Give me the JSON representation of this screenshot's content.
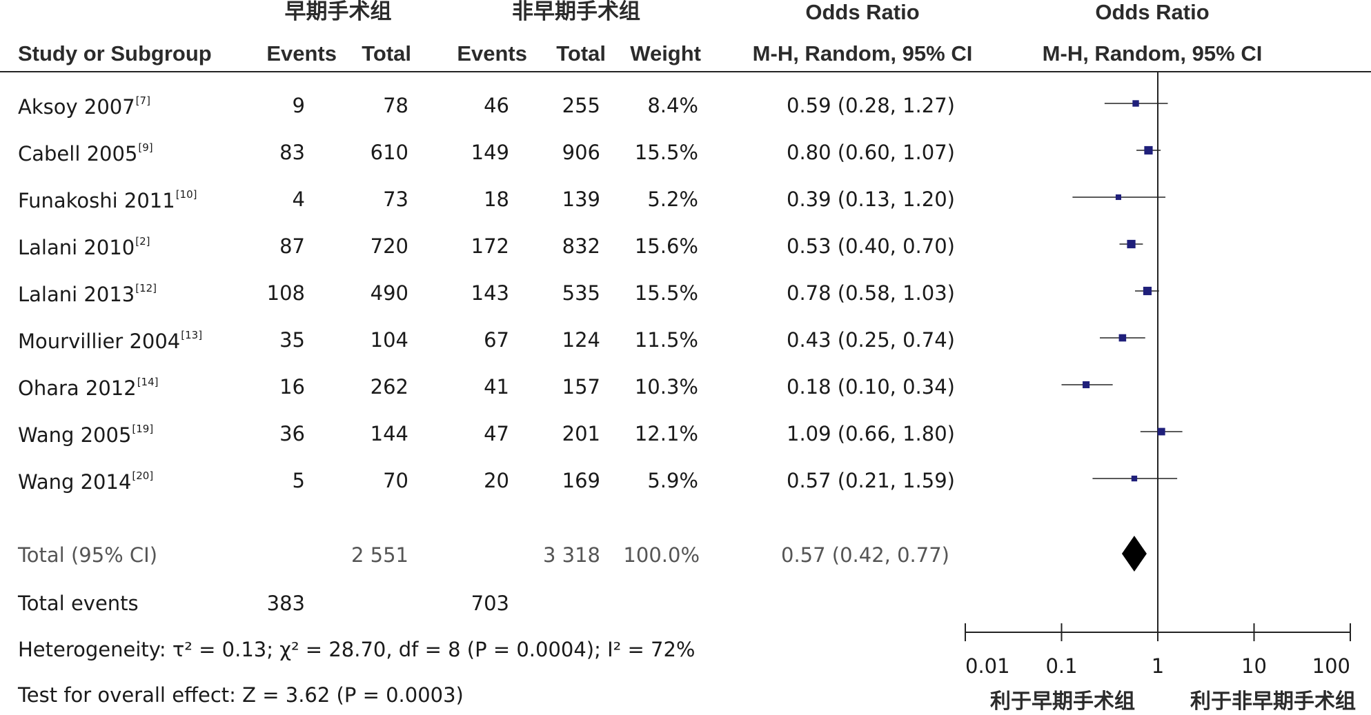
{
  "chart_data": {
    "type": "forest",
    "group_headers": {
      "early": "早期手术组",
      "nonearly": "非早期手术组"
    },
    "column_headers": {
      "study": "Study or Subgroup",
      "events1": "Events",
      "total1": "Total",
      "events2": "Events",
      "total2": "Total",
      "weight": "Weight",
      "or_title": "Odds Ratio",
      "or_method": "M-H, Random, 95% CI",
      "plot_title": "Odds Ratio",
      "plot_method": "M-H, Random, 95% CI"
    },
    "studies": [
      {
        "name": "Aksoy 2007",
        "ref": "[7]",
        "events1": "9",
        "total1": "78",
        "events2": "46",
        "total2": "255",
        "weight": "8.4%",
        "or_text": "0.59 (0.28, 1.27)",
        "or": 0.59,
        "lo": 0.28,
        "hi": 1.27,
        "w": 8.4
      },
      {
        "name": "Cabell 2005",
        "ref": "[9]",
        "events1": "83",
        "total1": "610",
        "events2": "149",
        "total2": "906",
        "weight": "15.5%",
        "or_text": "0.80 (0.60, 1.07)",
        "or": 0.8,
        "lo": 0.6,
        "hi": 1.07,
        "w": 15.5
      },
      {
        "name": "Funakoshi 2011",
        "ref": "[10]",
        "events1": "4",
        "total1": "73",
        "events2": "18",
        "total2": "139",
        "weight": "5.2%",
        "or_text": "0.39 (0.13, 1.20)",
        "or": 0.39,
        "lo": 0.13,
        "hi": 1.2,
        "w": 5.2
      },
      {
        "name": "Lalani 2010",
        "ref": "[2]",
        "events1": "87",
        "total1": "720",
        "events2": "172",
        "total2": "832",
        "weight": "15.6%",
        "or_text": "0.53 (0.40, 0.70)",
        "or": 0.53,
        "lo": 0.4,
        "hi": 0.7,
        "w": 15.6
      },
      {
        "name": "Lalani 2013",
        "ref": "[12]",
        "events1": "108",
        "total1": "490",
        "events2": "143",
        "total2": "535",
        "weight": "15.5%",
        "or_text": "0.78 (0.58, 1.03)",
        "or": 0.78,
        "lo": 0.58,
        "hi": 1.03,
        "w": 15.5
      },
      {
        "name": "Mourvillier 2004",
        "ref": "[13]",
        "events1": "35",
        "total1": "104",
        "events2": "67",
        "total2": "124",
        "weight": "11.5%",
        "or_text": "0.43 (0.25, 0.74)",
        "or": 0.43,
        "lo": 0.25,
        "hi": 0.74,
        "w": 11.5
      },
      {
        "name": "Ohara 2012",
        "ref": "[14]",
        "events1": "16",
        "total1": "262",
        "events2": "41",
        "total2": "157",
        "weight": "10.3%",
        "or_text": "0.18 (0.10, 0.34)",
        "or": 0.18,
        "lo": 0.1,
        "hi": 0.34,
        "w": 10.3
      },
      {
        "name": "Wang 2005",
        "ref": "[19]",
        "events1": "36",
        "total1": "144",
        "events2": "47",
        "total2": "201",
        "weight": "12.1%",
        "or_text": "1.09 (0.66, 1.80)",
        "or": 1.09,
        "lo": 0.66,
        "hi": 1.8,
        "w": 12.1
      },
      {
        "name": "Wang 2014",
        "ref": "[20]",
        "events1": "5",
        "total1": "70",
        "events2": "20",
        "total2": "169",
        "weight": "5.9%",
        "or_text": "0.57 (0.21, 1.59)",
        "or": 0.57,
        "lo": 0.21,
        "hi": 1.59,
        "w": 5.9
      }
    ],
    "total": {
      "label": "Total (95% CI)",
      "total1": "2 551",
      "total2": "3 318",
      "weight": "100.0%",
      "or_text": "0.57 (0.42, 0.77)",
      "or": 0.57,
      "lo": 0.42,
      "hi": 0.77
    },
    "total_events": {
      "label": "Total events",
      "events1": "383",
      "events2": "703"
    },
    "heterogeneity": "Heterogeneity: τ² = 0.13; χ² = 28.70, df = 8 (P = 0.0004); I² = 72%",
    "overall_effect": "Test for overall effect: Z = 3.62 (P = 0.0003)",
    "x_axis": {
      "scale": "log",
      "ticks": [
        0.01,
        0.1,
        1,
        10,
        100
      ],
      "tick_labels": [
        "0.01",
        "0.1",
        "1",
        "10",
        "100"
      ],
      "range": [
        0.01,
        100
      ]
    },
    "favours": {
      "left": "利于早期手术组",
      "right": "利于非早期手术组"
    },
    "colors": {
      "marker": "#1f1f7a",
      "diamond": "#000000",
      "line": "#222222"
    }
  }
}
